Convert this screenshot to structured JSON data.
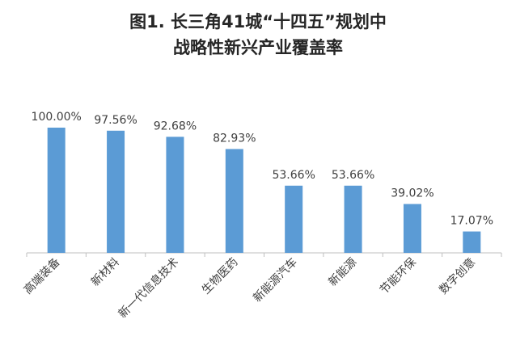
{
  "chart_data": {
    "type": "bar",
    "title_lines": [
      "图1. 长三角41城“十四五”规划中",
      "战略性新兴产业覆盖率"
    ],
    "categories": [
      "高端装备",
      "新材料",
      "新一代信息技术",
      "生物医药",
      "新能源汽车",
      "新能源",
      "节能环保",
      "数字创意"
    ],
    "values": [
      100.0,
      97.56,
      92.68,
      82.93,
      53.66,
      53.66,
      39.02,
      17.07
    ],
    "data_labels": [
      "100.00%",
      "97.56%",
      "92.68%",
      "82.93%",
      "53.66%",
      "53.66%",
      "39.02%",
      "17.07%"
    ],
    "xlabel": "",
    "ylabel": "",
    "ylim": [
      0,
      100
    ],
    "grid": false,
    "legend": "none",
    "bar_color": "#5B9BD5",
    "axis_color": "#BFBFBF"
  }
}
